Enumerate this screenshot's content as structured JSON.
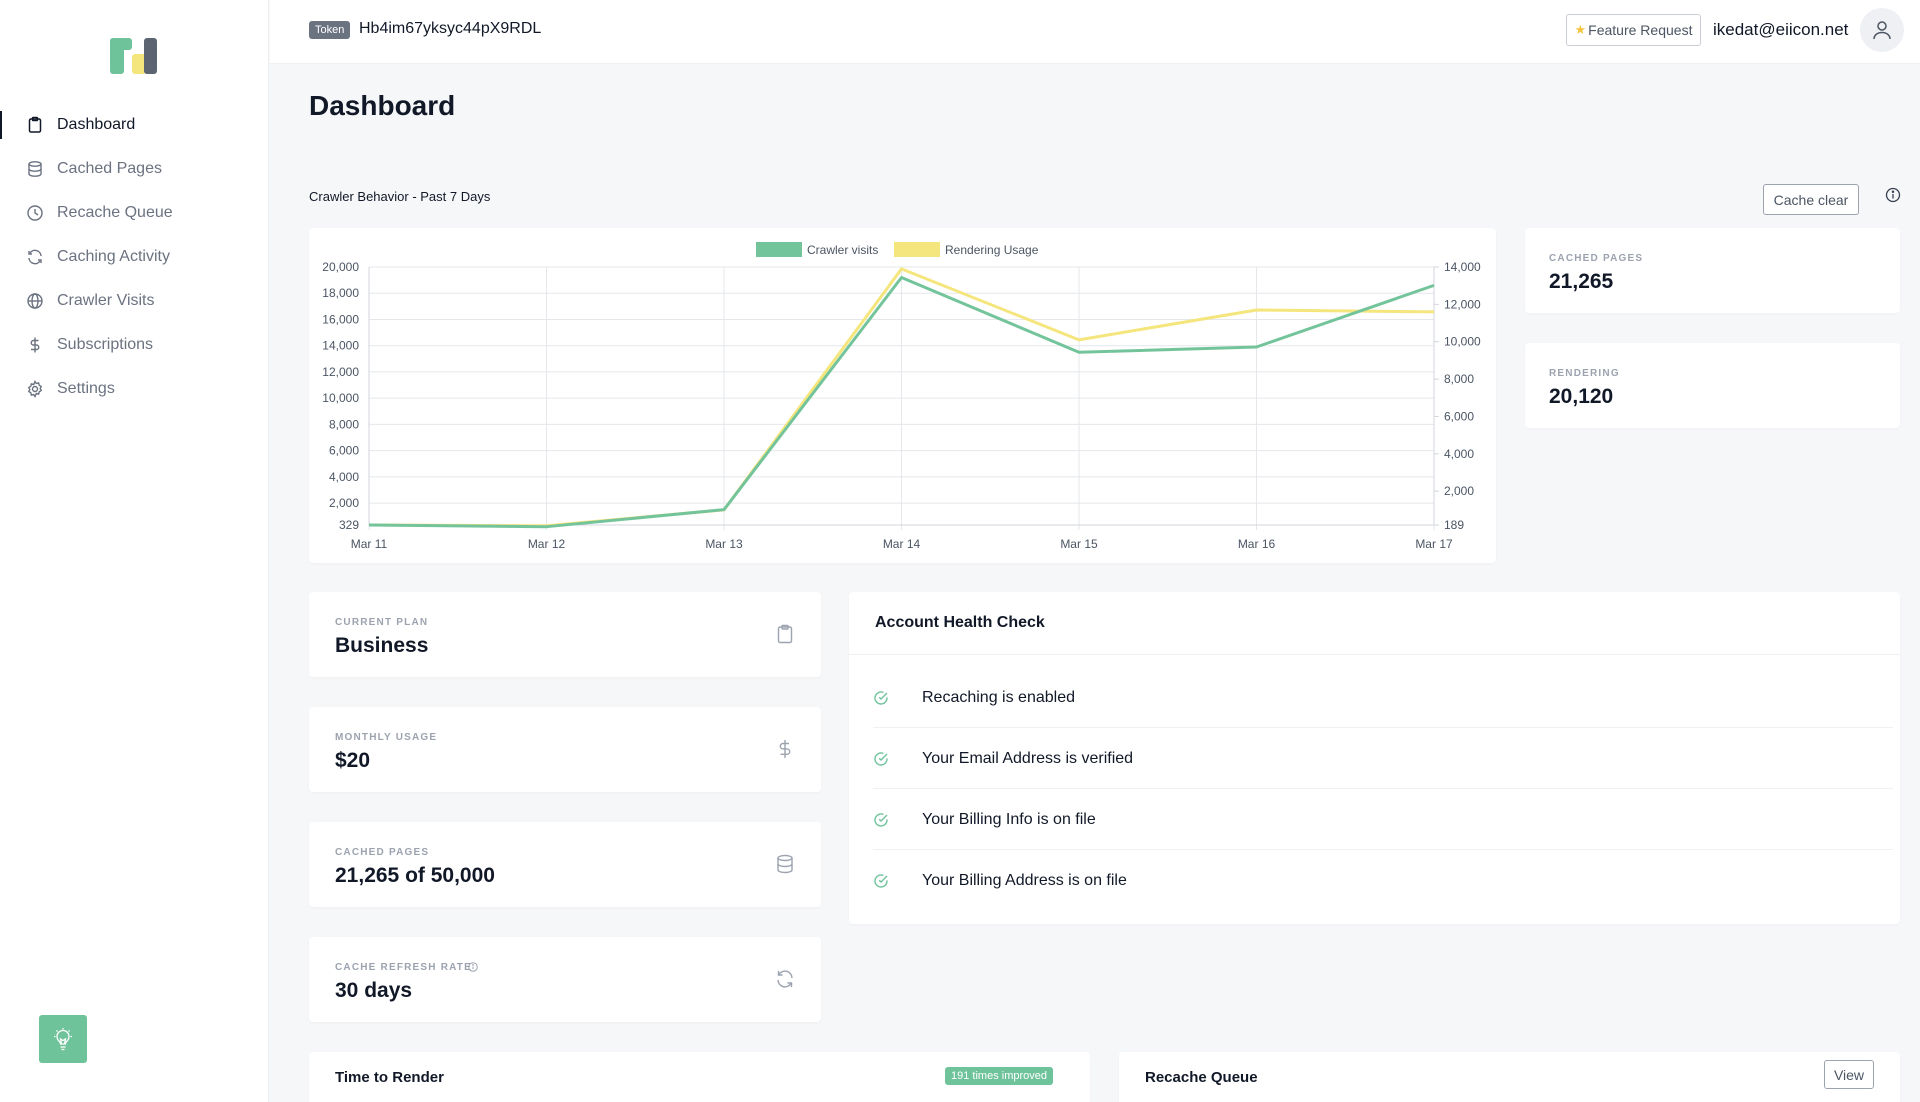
{
  "header": {
    "token_label": "Token",
    "token_value": "Hb4im67yksyc44pX9RDL",
    "feature_request_label": "Feature Request",
    "user_email": "ikedat@eiicon.net"
  },
  "sidebar": {
    "items": [
      {
        "label": "Dashboard",
        "icon": "clipboard-icon",
        "active": true
      },
      {
        "label": "Cached Pages",
        "icon": "database-icon"
      },
      {
        "label": "Recache Queue",
        "icon": "clock-icon"
      },
      {
        "label": "Caching Activity",
        "icon": "refresh-icon"
      },
      {
        "label": "Crawler Visits",
        "icon": "globe-icon"
      },
      {
        "label": "Subscriptions",
        "icon": "dollar-icon"
      },
      {
        "label": "Settings",
        "icon": "gear-icon"
      }
    ]
  },
  "page": {
    "title": "Dashboard",
    "chart_section_title": "Crawler Behavior - Past 7 Days",
    "cache_clear_label": "Cache clear"
  },
  "chart_data": {
    "type": "line",
    "categories": [
      "Mar 11",
      "Mar 12",
      "Mar 13",
      "Mar 14",
      "Mar 15",
      "Mar 16",
      "Mar 17"
    ],
    "series": [
      {
        "name": "Crawler visits",
        "axis": "left",
        "color": "#74c49b",
        "values": [
          329,
          200,
          1500,
          19200,
          13500,
          13900,
          18600
        ]
      },
      {
        "name": "Rendering Usage",
        "axis": "right",
        "color": "#f5e57d",
        "values": [
          189,
          150,
          1000,
          13900,
          10100,
          11700,
          11600
        ]
      }
    ],
    "y_left": {
      "ylim": [
        329,
        20000
      ],
      "ticks": [
        "329",
        "2,000",
        "4,000",
        "6,000",
        "8,000",
        "10,000",
        "12,000",
        "14,000",
        "16,000",
        "18,000",
        "20,000"
      ]
    },
    "y_right": {
      "ylim": [
        189,
        14000
      ],
      "ticks": [
        "189",
        "2,000",
        "4,000",
        "6,000",
        "8,000",
        "10,000",
        "12,000",
        "14,000"
      ]
    },
    "grid": true,
    "legend_position": "top-center"
  },
  "stats": {
    "cached_pages_label": "CACHED PAGES",
    "cached_pages_value": "21,265",
    "rendering_label": "RENDERING",
    "rendering_value": "20,120"
  },
  "plan": {
    "current_plan_label": "CURRENT PLAN",
    "current_plan_value": "Business",
    "monthly_usage_label": "MONTHLY USAGE",
    "monthly_usage_value": "$20",
    "cached_pages_label": "CACHED PAGES",
    "cached_pages_value": "21,265 of 50,000",
    "refresh_rate_label": "CACHE REFRESH RATE",
    "refresh_rate_value": "30 days"
  },
  "health": {
    "title": "Account Health Check",
    "items": [
      {
        "text": "Recaching is enabled"
      },
      {
        "text": "Your Email Address is verified"
      },
      {
        "text": "Your Billing Info is on file"
      },
      {
        "text": "Your Billing Address is on file"
      }
    ]
  },
  "bottom": {
    "time_to_render_title": "Time to Render",
    "improved_badge": "191 times improved",
    "recache_queue_title": "Recache Queue",
    "view_label": "View"
  },
  "colors": {
    "accent_green": "#6fc39b",
    "line_green": "#74c49b",
    "line_yellow": "#f5e57d"
  }
}
